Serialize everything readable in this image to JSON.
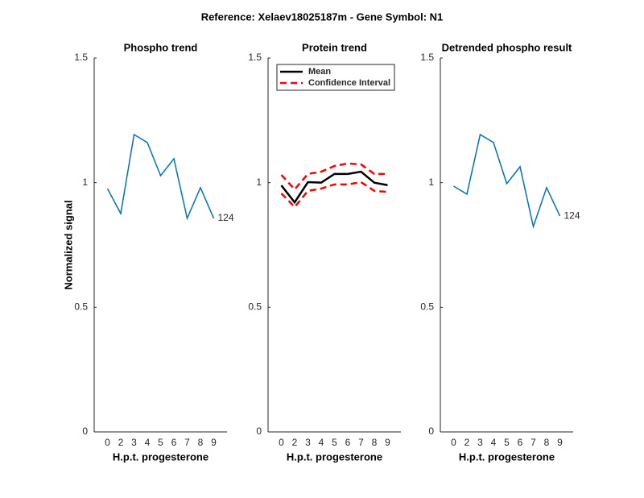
{
  "title": "Reference:  Xelaev18025187m - Gene Symbol:  N1",
  "chart_data": [
    {
      "type": "line",
      "title": "Phospho trend",
      "xlabel": "H.p.t. progesterone",
      "ylabel": "Normalized signal",
      "categories": [
        "0",
        "2",
        "3",
        "4",
        "5",
        "6",
        "7",
        "8",
        "9"
      ],
      "series": [
        {
          "color": "#0072bd",
          "values": [
            0.976,
            0.876,
            1.193,
            1.161,
            1.028,
            1.096,
            0.857,
            0.98,
            0.857
          ]
        }
      ],
      "annotation": "124",
      "ylim": [
        0,
        1.5
      ],
      "yticks": [
        0,
        0.5,
        1,
        1.5
      ]
    },
    {
      "type": "band",
      "title": "Protein trend",
      "xlabel": "H.p.t. progesterone",
      "categories": [
        "0",
        "2",
        "3",
        "4",
        "5",
        "6",
        "7",
        "8",
        "9"
      ],
      "series": [
        {
          "name": "Mean",
          "color": "#000000",
          "values": [
            0.989,
            0.921,
            1.002,
            1.0,
            1.035,
            1.035,
            1.044,
            1.0,
            0.99
          ]
        },
        {
          "name": "Confidence Interval",
          "color": "#ff0000",
          "upper": [
            1.031,
            0.973,
            1.035,
            1.044,
            1.067,
            1.077,
            1.073,
            1.035,
            1.035
          ],
          "lower": [
            0.957,
            0.902,
            0.967,
            0.976,
            0.993,
            0.993,
            1.002,
            0.967,
            0.963
          ]
        }
      ],
      "ylim": [
        0,
        1.5
      ],
      "yticks": [
        0,
        0.5,
        1,
        1.5
      ]
    },
    {
      "type": "line",
      "title": "Detrended phospho result",
      "xlabel": "H.p.t. progesterone",
      "categories": [
        "0",
        "2",
        "3",
        "4",
        "5",
        "6",
        "7",
        "8",
        "9"
      ],
      "series": [
        {
          "color": "#0072bd",
          "values": [
            0.986,
            0.954,
            1.193,
            1.161,
            0.996,
            1.064,
            0.824,
            0.98,
            0.866
          ]
        }
      ],
      "annotation": "124",
      "ylim": [
        0,
        1.5
      ],
      "yticks": [
        0,
        0.5,
        1,
        1.5
      ]
    }
  ]
}
